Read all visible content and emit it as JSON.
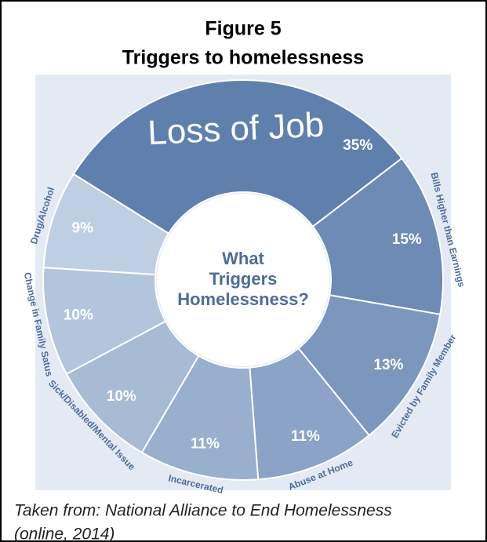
{
  "chart_data": {
    "type": "pie",
    "title": "Figure 5",
    "subtitle": "Triggers to homelessness",
    "center_text": [
      "What",
      "Triggers",
      "Homelessness?"
    ],
    "categories": [
      "Loss of Job",
      "Bills Higher than Earnings",
      "Evicted by Family Member",
      "Abuse at Home",
      "Incarcerated",
      "Sick/Disabled/Mental Issue",
      "Change in Family Satus",
      "Drug/Alcohol"
    ],
    "values": [
      35,
      15,
      13,
      11,
      11,
      10,
      10,
      9
    ],
    "value_labels": [
      "35%",
      "15%",
      "13%",
      "11%",
      "11%",
      "10%",
      "10%",
      "9%"
    ],
    "colors": [
      "#5f80ad",
      "#6d8bb5",
      "#7b97bd",
      "#8aa3c6",
      "#98afcd",
      "#a7bbd5",
      "#b3c5dc",
      "#bfcfe3"
    ],
    "caption": [
      "Taken from: National Alliance to End Homelessness",
      "(online, 2014)"
    ]
  }
}
